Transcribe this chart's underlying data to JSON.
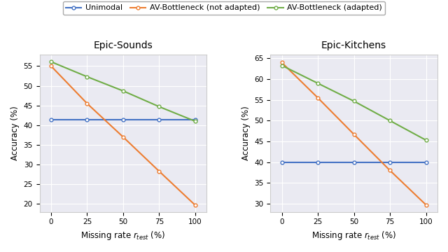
{
  "x": [
    0,
    25,
    50,
    75,
    100
  ],
  "epic_sounds": {
    "unimodal": [
      41.4,
      41.4,
      41.4,
      41.4,
      41.4
    ],
    "av_not_adapted": [
      55.0,
      45.5,
      37.0,
      28.3,
      19.7
    ],
    "av_adapted": [
      56.1,
      52.3,
      48.7,
      44.7,
      41.0
    ]
  },
  "epic_kitchens": {
    "unimodal": [
      40.0,
      40.0,
      40.0,
      40.0,
      40.0
    ],
    "av_not_adapted": [
      64.0,
      55.5,
      46.7,
      38.0,
      29.7
    ],
    "av_adapted": [
      63.3,
      59.0,
      54.7,
      50.0,
      45.3
    ]
  },
  "colors": {
    "unimodal": "#4472c4",
    "av_not_adapted": "#ed7d31",
    "av_adapted": "#70ad47"
  },
  "legend_labels": [
    "Unimodal",
    "AV-Bottleneck (not adapted)",
    "AV-Bottleneck (adapted)"
  ],
  "titles": [
    "Epic-Sounds",
    "Epic-Kitchens"
  ],
  "xlabel": "Missing rate $r_{test}$ (%)",
  "ylabel": "Accuracy (%)",
  "ylim_left": [
    18,
    58
  ],
  "ylim_right": [
    28,
    66
  ],
  "yticks_left": [
    20,
    25,
    30,
    35,
    40,
    45,
    50,
    55
  ],
  "yticks_right": [
    30,
    35,
    40,
    45,
    50,
    55,
    60,
    65
  ],
  "xticks": [
    0,
    25,
    50,
    75,
    100
  ],
  "marker": "o",
  "markersize": 3.5,
  "linewidth": 1.5,
  "background_color": "#eaeaf2",
  "grid_color": "white",
  "legend_fontsize": 8,
  "axis_fontsize": 8.5,
  "title_fontsize": 10,
  "tick_fontsize": 7.5
}
